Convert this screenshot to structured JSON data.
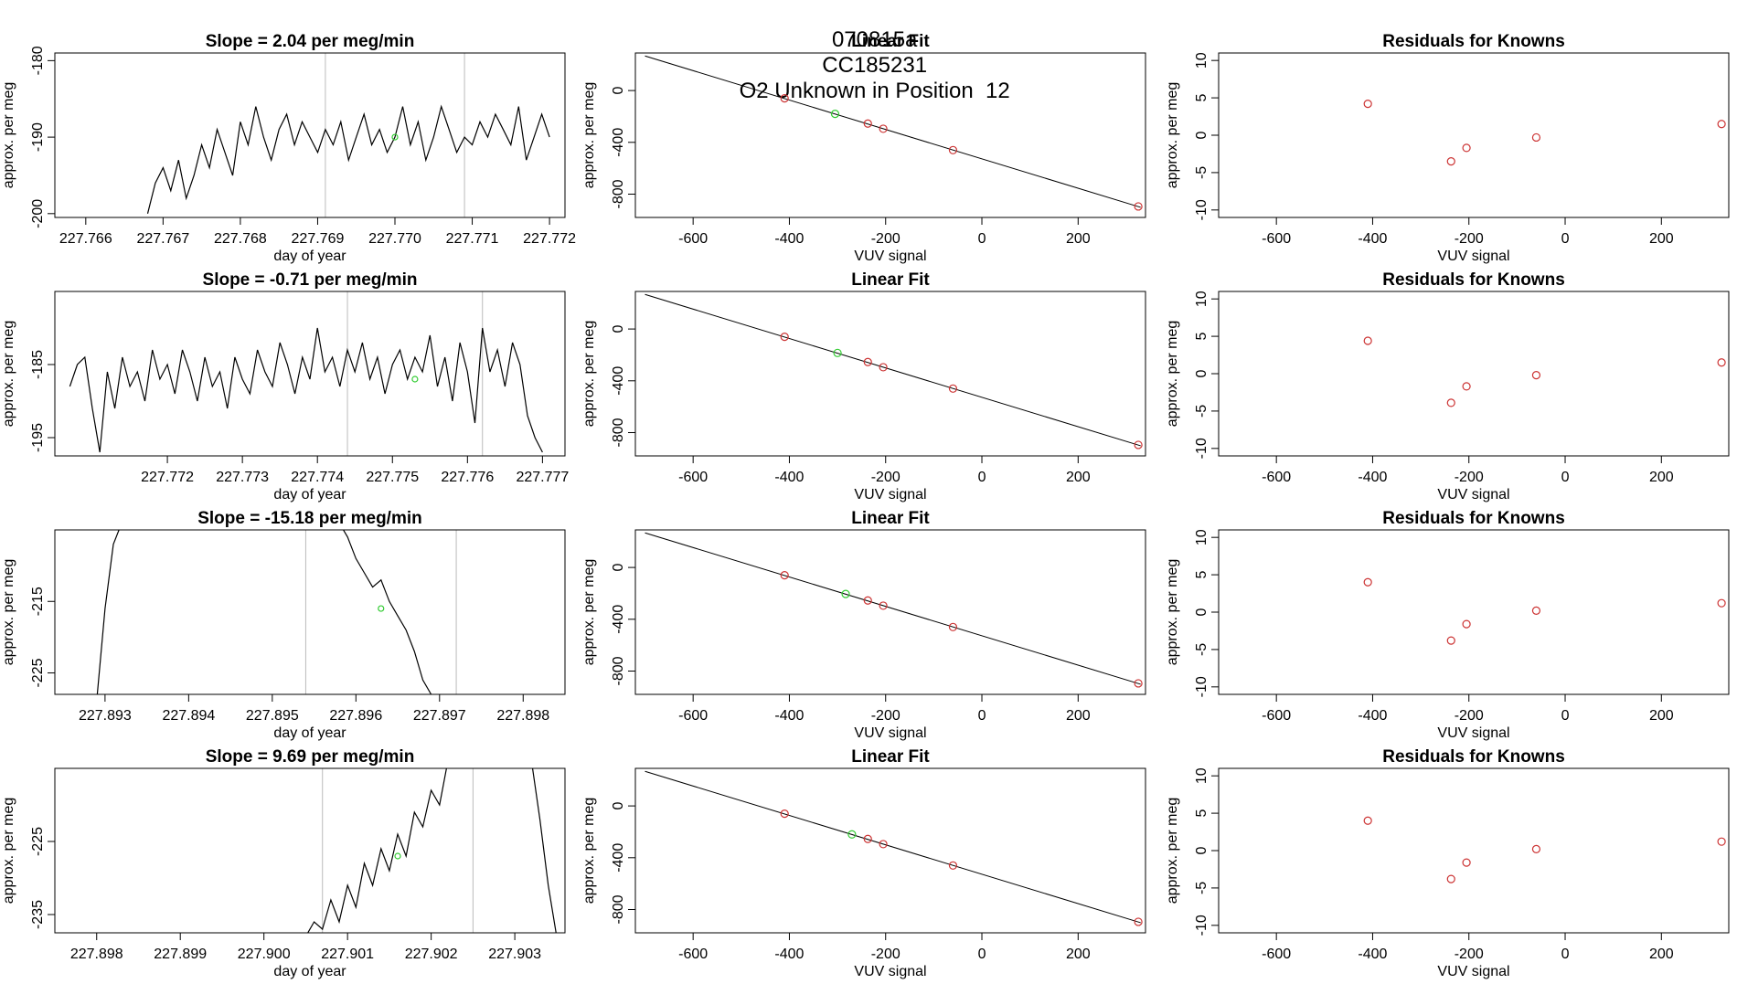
{
  "header": {
    "title_parts": [
      "070815a",
      "CC185231",
      "O2 Unknown in Position  12"
    ]
  },
  "chart_data": [
    {
      "row": 0,
      "type": "line",
      "title": "Slope =  2.04  per meg/min",
      "xlabel": "day of year",
      "ylabel": "approx. per meg",
      "xlim": [
        227.7656,
        227.7722
      ],
      "ylim": [
        -200.5,
        -179
      ],
      "xticks": [
        227.766,
        227.767,
        227.768,
        227.769,
        227.77,
        227.771,
        227.772
      ],
      "xtick_labels": [
        "227.766",
        "227.767",
        "227.768",
        "227.769",
        "227.770",
        "227.771",
        "227.772"
      ],
      "yticks": [
        -200,
        -190,
        -180
      ],
      "ytick_labels": [
        "-200",
        "-190",
        "-180"
      ],
      "vlines": [
        227.7691,
        227.7709
      ],
      "x": [
        227.7668,
        227.7669,
        227.767,
        227.7671,
        227.7672,
        227.7673,
        227.7674,
        227.7675,
        227.7676,
        227.7677,
        227.7678,
        227.7679,
        227.768,
        227.7681,
        227.7682,
        227.7683,
        227.7684,
        227.7685,
        227.7686,
        227.7687,
        227.7688,
        227.7689,
        227.769,
        227.7691,
        227.7692,
        227.7693,
        227.7694,
        227.7695,
        227.7696,
        227.7697,
        227.7698,
        227.7699,
        227.77,
        227.7701,
        227.7702,
        227.7703,
        227.7704,
        227.7705,
        227.7706,
        227.7707,
        227.7708,
        227.7709,
        227.771,
        227.7711,
        227.7712,
        227.7713,
        227.7714,
        227.7715,
        227.7716,
        227.7717,
        227.7718,
        227.7719,
        227.772
      ],
      "y": [
        -200,
        -196,
        -194,
        -197,
        -193,
        -198,
        -195,
        -191,
        -194,
        -189,
        -192,
        -195,
        -188,
        -191,
        -186,
        -190,
        -193,
        -189,
        -187,
        -191,
        -188,
        -190,
        -192,
        -189,
        -191,
        -188,
        -193,
        -190,
        -187,
        -191,
        -189,
        -192,
        -190,
        -186,
        -191,
        -188,
        -193,
        -190,
        -186,
        -189,
        -192,
        -190,
        -191,
        -188,
        -190,
        -187,
        -189,
        -191,
        -186,
        -193,
        -190,
        -187,
        -190
      ],
      "marker": {
        "x": 227.77,
        "y": -190,
        "color": "#33cc33"
      }
    },
    {
      "row": 1,
      "type": "line",
      "title": "Slope =  -0.71  per meg/min",
      "xlabel": "day of year",
      "ylabel": "approx. per meg",
      "xlim": [
        227.7705,
        227.7773
      ],
      "ylim": [
        -197.5,
        -175
      ],
      "xticks": [
        227.772,
        227.773,
        227.774,
        227.775,
        227.776,
        227.777
      ],
      "xtick_labels": [
        "227.772",
        "227.773",
        "227.774",
        "227.775",
        "227.776",
        "227.777"
      ],
      "yticks": [
        -195,
        -185
      ],
      "ytick_labels": [
        "-195",
        "-185"
      ],
      "vlines": [
        227.7744,
        227.7762
      ],
      "x": [
        227.7707,
        227.7708,
        227.7709,
        227.771,
        227.7711,
        227.7712,
        227.7713,
        227.7714,
        227.7715,
        227.7716,
        227.7717,
        227.7718,
        227.7719,
        227.772,
        227.7721,
        227.7722,
        227.7723,
        227.7724,
        227.7725,
        227.7726,
        227.7727,
        227.7728,
        227.7729,
        227.773,
        227.7731,
        227.7732,
        227.7733,
        227.7734,
        227.7735,
        227.7736,
        227.7737,
        227.7738,
        227.7739,
        227.774,
        227.7741,
        227.7742,
        227.7743,
        227.7744,
        227.7745,
        227.7746,
        227.7747,
        227.7748,
        227.7749,
        227.775,
        227.7751,
        227.7752,
        227.7753,
        227.7754,
        227.7755,
        227.7756,
        227.7757,
        227.7758,
        227.7759,
        227.776,
        227.7761,
        227.7762,
        227.7763,
        227.7764,
        227.7765,
        227.7766,
        227.7767,
        227.7768,
        227.7769,
        227.777
      ],
      "y": [
        -188,
        -185,
        -184,
        -191,
        -197,
        -186,
        -191,
        -184,
        -188,
        -186,
        -190,
        -183,
        -187,
        -185,
        -189,
        -183,
        -186,
        -190,
        -184,
        -188,
        -186,
        -191,
        -184,
        -187,
        -189,
        -183,
        -186,
        -188,
        -182,
        -185,
        -189,
        -184,
        -187,
        -180,
        -186,
        -184,
        -188,
        -183,
        -186,
        -182,
        -187,
        -184,
        -189,
        -185,
        -183,
        -187,
        -184,
        -186,
        -181,
        -188,
        -184,
        -190,
        -182,
        -186,
        -193,
        -180,
        -186,
        -183,
        -188,
        -182,
        -185,
        -192,
        -195,
        -197
      ],
      "marker": {
        "x": 227.7753,
        "y": -187,
        "color": "#33cc33"
      }
    },
    {
      "row": 2,
      "type": "line",
      "title": "Slope =  -15.18  per meg/min",
      "xlabel": "day of year",
      "ylabel": "approx. per meg",
      "xlim": [
        227.8924,
        227.8985
      ],
      "ylim": [
        -228,
        -205
      ],
      "xticks": [
        227.893,
        227.894,
        227.895,
        227.896,
        227.897,
        227.898
      ],
      "xtick_labels": [
        "227.893",
        "227.894",
        "227.895",
        "227.896",
        "227.897",
        "227.898"
      ],
      "yticks": [
        -225,
        -215
      ],
      "ytick_labels": [
        "-225",
        "-215"
      ],
      "vlines": [
        227.8954,
        227.8972
      ],
      "segments": [
        {
          "x": [
            227.8929,
            227.893,
            227.8931,
            227.8932
          ],
          "y": [
            -229,
            -216,
            -207,
            -204
          ]
        },
        {
          "x": [
            227.8958,
            227.8959,
            227.896,
            227.8961,
            227.8962,
            227.8963,
            227.8964,
            227.8965,
            227.8966,
            227.8967,
            227.8968,
            227.8969,
            227.897
          ],
          "y": [
            -204,
            -206,
            -209,
            -211,
            -213,
            -212,
            -215,
            -217,
            -219,
            -222,
            -226,
            -228,
            -229
          ]
        }
      ],
      "marker": {
        "x": 227.8963,
        "y": -216,
        "color": "#33cc33"
      }
    },
    {
      "row": 3,
      "type": "line",
      "title": "Slope =  9.69  per meg/min",
      "xlabel": "day of year",
      "ylabel": "approx. per meg",
      "xlim": [
        227.8975,
        227.9036
      ],
      "ylim": [
        -237.5,
        -215
      ],
      "xticks": [
        227.898,
        227.899,
        227.9,
        227.901,
        227.902,
        227.903
      ],
      "xtick_labels": [
        "227.898",
        "227.899",
        "227.900",
        "227.901",
        "227.902",
        "227.903"
      ],
      "yticks": [
        -235,
        -225
      ],
      "ytick_labels": [
        "-235",
        "-225"
      ],
      "vlines": [
        227.9007,
        227.9025
      ],
      "segments": [
        {
          "x": [
            227.9005,
            227.9006,
            227.9007,
            227.9008,
            227.9009,
            227.901,
            227.9011,
            227.9012,
            227.9013,
            227.9014,
            227.9015,
            227.9016,
            227.9017,
            227.9018,
            227.9019,
            227.902,
            227.9021,
            227.9022
          ],
          "y": [
            -238,
            -236,
            -237,
            -233,
            -236,
            -231,
            -234,
            -228,
            -231,
            -226,
            -229,
            -224,
            -227,
            -221,
            -223,
            -218,
            -220,
            -214
          ]
        },
        {
          "x": [
            227.9032,
            227.9033,
            227.9034,
            227.9035
          ],
          "y": [
            -214,
            -222,
            -231,
            -238
          ]
        }
      ],
      "marker": {
        "x": 227.9016,
        "y": -227,
        "color": "#33cc33"
      }
    },
    {
      "row": 0,
      "type": "scatter",
      "title": "Linear Fit",
      "xlabel": "VUV signal",
      "ylabel": "approx. per meg",
      "xlim": [
        -720,
        340
      ],
      "ylim": [
        -980,
        290
      ],
      "xticks": [
        -600,
        -400,
        -200,
        0,
        200
      ],
      "xtick_labels": [
        "-600",
        "-400",
        "-200",
        "0",
        "200"
      ],
      "yticks": [
        -800,
        -400,
        0
      ],
      "ytick_labels": [
        "-800",
        "-400",
        "0"
      ],
      "fit_line": {
        "x": [
          -700,
          330
        ],
        "y": [
          267,
          -902
        ]
      },
      "points": {
        "x": [
          -410,
          -237,
          -205,
          -60,
          325
        ],
        "y": [
          -60,
          -255,
          -295,
          -460,
          -895
        ],
        "color": "#cc3333"
      },
      "unknown": {
        "x": [
          -305
        ],
        "y": [
          -180
        ],
        "color": "#33cc33"
      }
    },
    {
      "row": 1,
      "type": "scatter",
      "title": "Linear Fit",
      "xlabel": "VUV signal",
      "ylabel": "approx. per meg",
      "xlim": [
        -720,
        340
      ],
      "ylim": [
        -980,
        290
      ],
      "xticks": [
        -600,
        -400,
        -200,
        0,
        200
      ],
      "xtick_labels": [
        "-600",
        "-400",
        "-200",
        "0",
        "200"
      ],
      "yticks": [
        -800,
        -400,
        0
      ],
      "ytick_labels": [
        "-800",
        "-400",
        "0"
      ],
      "fit_line": {
        "x": [
          -700,
          330
        ],
        "y": [
          267,
          -902
        ]
      },
      "points": {
        "x": [
          -410,
          -237,
          -205,
          -60,
          325
        ],
        "y": [
          -60,
          -255,
          -295,
          -460,
          -895
        ],
        "color": "#cc3333"
      },
      "unknown": {
        "x": [
          -300
        ],
        "y": [
          -185
        ],
        "color": "#33cc33"
      }
    },
    {
      "row": 2,
      "type": "scatter",
      "title": "Linear Fit",
      "xlabel": "VUV signal",
      "ylabel": "approx. per meg",
      "xlim": [
        -720,
        340
      ],
      "ylim": [
        -980,
        290
      ],
      "xticks": [
        -600,
        -400,
        -200,
        0,
        200
      ],
      "xtick_labels": [
        "-600",
        "-400",
        "-200",
        "0",
        "200"
      ],
      "yticks": [
        -800,
        -400,
        0
      ],
      "ytick_labels": [
        "-800",
        "-400",
        "0"
      ],
      "fit_line": {
        "x": [
          -700,
          330
        ],
        "y": [
          267,
          -902
        ]
      },
      "points": {
        "x": [
          -410,
          -237,
          -205,
          -60,
          325
        ],
        "y": [
          -60,
          -255,
          -295,
          -460,
          -895
        ],
        "color": "#cc3333"
      },
      "unknown": {
        "x": [
          -283
        ],
        "y": [
          -205
        ],
        "color": "#33cc33"
      }
    },
    {
      "row": 3,
      "type": "scatter",
      "title": "Linear Fit",
      "xlabel": "VUV signal",
      "ylabel": "approx. per meg",
      "xlim": [
        -720,
        340
      ],
      "ylim": [
        -980,
        290
      ],
      "xticks": [
        -600,
        -400,
        -200,
        0,
        200
      ],
      "xtick_labels": [
        "-600",
        "-400",
        "-200",
        "0",
        "200"
      ],
      "yticks": [
        -800,
        -400,
        0
      ],
      "ytick_labels": [
        "-800",
        "-400",
        "0"
      ],
      "fit_line": {
        "x": [
          -700,
          330
        ],
        "y": [
          267,
          -902
        ]
      },
      "points": {
        "x": [
          -410,
          -237,
          -205,
          -60,
          325
        ],
        "y": [
          -60,
          -255,
          -295,
          -460,
          -895
        ],
        "color": "#cc3333"
      },
      "unknown": {
        "x": [
          -270
        ],
        "y": [
          -220
        ],
        "color": "#33cc33"
      }
    },
    {
      "row": 0,
      "type": "scatter",
      "title": "Residuals for Knowns",
      "xlabel": "VUV signal",
      "ylabel": "approx. per meg",
      "xlim": [
        -720,
        340
      ],
      "ylim": [
        -11,
        11
      ],
      "xticks": [
        -600,
        -400,
        -200,
        0,
        200
      ],
      "xtick_labels": [
        "-600",
        "-400",
        "-200",
        "0",
        "200"
      ],
      "yticks": [
        -10,
        -5,
        0,
        5,
        10
      ],
      "ytick_labels": [
        "-10",
        "-5",
        "0",
        "5",
        "10"
      ],
      "points": {
        "x": [
          -410,
          -237,
          -205,
          -60,
          325
        ],
        "y": [
          4.2,
          -3.5,
          -1.7,
          -0.3,
          1.5
        ],
        "color": "#cc3333"
      }
    },
    {
      "row": 1,
      "type": "scatter",
      "title": "Residuals for Knowns",
      "xlabel": "VUV signal",
      "ylabel": "approx. per meg",
      "xlim": [
        -720,
        340
      ],
      "ylim": [
        -11,
        11
      ],
      "xticks": [
        -600,
        -400,
        -200,
        0,
        200
      ],
      "xtick_labels": [
        "-600",
        "-400",
        "-200",
        "0",
        "200"
      ],
      "yticks": [
        -10,
        -5,
        0,
        5,
        10
      ],
      "ytick_labels": [
        "-10",
        "-5",
        "0",
        "5",
        "10"
      ],
      "points": {
        "x": [
          -410,
          -237,
          -205,
          -60,
          325
        ],
        "y": [
          4.4,
          -3.9,
          -1.7,
          -0.2,
          1.5
        ],
        "color": "#cc3333"
      }
    },
    {
      "row": 2,
      "type": "scatter",
      "title": "Residuals for Knowns",
      "xlabel": "VUV signal",
      "ylabel": "approx. per meg",
      "xlim": [
        -720,
        340
      ],
      "ylim": [
        -11,
        11
      ],
      "xticks": [
        -600,
        -400,
        -200,
        0,
        200
      ],
      "xtick_labels": [
        "-600",
        "-400",
        "-200",
        "0",
        "200"
      ],
      "yticks": [
        -10,
        -5,
        0,
        5,
        10
      ],
      "ytick_labels": [
        "-10",
        "-5",
        "0",
        "5",
        "10"
      ],
      "points": {
        "x": [
          -410,
          -237,
          -205,
          -60,
          325
        ],
        "y": [
          4.0,
          -3.8,
          -1.6,
          0.2,
          1.2
        ],
        "color": "#cc3333"
      }
    },
    {
      "row": 3,
      "type": "scatter",
      "title": "Residuals for Knowns",
      "xlabel": "VUV signal",
      "ylabel": "approx. per meg",
      "xlim": [
        -720,
        340
      ],
      "ylim": [
        -11,
        11
      ],
      "xticks": [
        -600,
        -400,
        -200,
        0,
        200
      ],
      "xtick_labels": [
        "-600",
        "-400",
        "-200",
        "0",
        "200"
      ],
      "yticks": [
        -10,
        -5,
        0,
        5,
        10
      ],
      "ytick_labels": [
        "-10",
        "-5",
        "0",
        "5",
        "10"
      ],
      "points": {
        "x": [
          -410,
          -237,
          -205,
          -60,
          325
        ],
        "y": [
          4.0,
          -3.8,
          -1.6,
          0.2,
          1.2
        ],
        "color": "#cc3333"
      }
    }
  ]
}
